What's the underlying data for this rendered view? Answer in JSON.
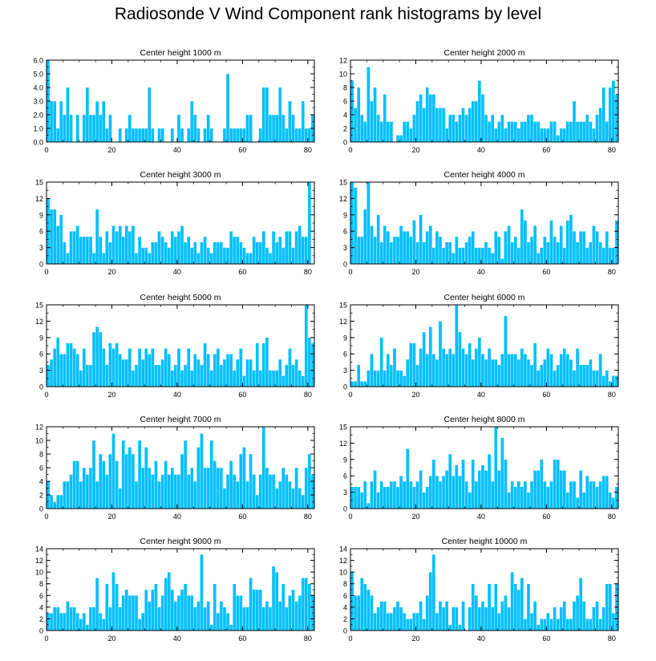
{
  "title": "Radiosonde V Wind Component rank histograms by level",
  "colors": {
    "bar": "#00BFFF",
    "bar_edge": "#ffffff",
    "axis": "#000000"
  },
  "chart_data": [
    {
      "type": "bar",
      "title": "Center height 1000 m",
      "xlim": [
        0,
        82
      ],
      "ylim": [
        0,
        6
      ],
      "xticks": [
        0,
        20,
        40,
        60,
        80
      ],
      "yticks": [
        0,
        1,
        2,
        3,
        4,
        5,
        6
      ],
      "ytick_labels": [
        "0.0",
        "1.0",
        "2.0",
        "3.0",
        "4.0",
        "5.0",
        "6.0"
      ],
      "values": [
        6,
        3,
        3,
        1,
        3,
        2,
        4,
        2,
        0,
        2,
        0,
        2,
        4,
        2,
        2,
        3,
        2,
        3,
        1,
        2,
        0,
        0,
        1,
        0,
        1,
        2,
        1,
        1,
        1,
        1,
        1,
        4,
        1,
        0,
        1,
        1,
        0,
        0,
        1,
        0,
        2,
        1,
        0,
        1,
        3,
        2,
        1,
        0,
        1,
        2,
        1,
        0,
        0,
        0,
        1,
        5,
        1,
        1,
        1,
        1,
        1,
        2,
        2,
        0,
        0,
        1,
        4,
        4,
        2,
        2,
        2,
        4,
        2,
        1,
        3,
        2,
        1,
        1,
        3,
        1,
        1,
        2
      ]
    },
    {
      "type": "bar",
      "title": "Center height 2000 m",
      "xlim": [
        0,
        82
      ],
      "ylim": [
        0,
        12
      ],
      "xticks": [
        0,
        20,
        40,
        60,
        80
      ],
      "yticks": [
        0,
        2,
        4,
        6,
        8,
        10,
        12
      ],
      "ytick_labels": [
        "0",
        "2",
        "4",
        "6",
        "8",
        "10",
        "12"
      ],
      "values": [
        9,
        5,
        8,
        4,
        3,
        11,
        6,
        8,
        4,
        3,
        7,
        3,
        3,
        0,
        1,
        1,
        3,
        3,
        2,
        4,
        6,
        7,
        5,
        8,
        7,
        7,
        5,
        5,
        5,
        2,
        4,
        4,
        3,
        4,
        5,
        4,
        5,
        6,
        6,
        9,
        7,
        4,
        3,
        4,
        2,
        3,
        4,
        2,
        3,
        3,
        3,
        2,
        3,
        3,
        4,
        4,
        3,
        3,
        2,
        2,
        2,
        3,
        3,
        1,
        2,
        2,
        3,
        3,
        6,
        3,
        3,
        3,
        4,
        3,
        2,
        4,
        5,
        8,
        3,
        8,
        9,
        7
      ]
    },
    {
      "type": "bar",
      "title": "Center height 3000 m",
      "xlim": [
        0,
        82
      ],
      "ylim": [
        0,
        15
      ],
      "xticks": [
        0,
        20,
        40,
        60,
        80
      ],
      "yticks": [
        0,
        3,
        6,
        9,
        12,
        15
      ],
      "ytick_labels": [
        "0",
        "3",
        "6",
        "9",
        "12",
        "15"
      ],
      "values": [
        12,
        10,
        10,
        7,
        9,
        4,
        2,
        6,
        6,
        7,
        5,
        5,
        5,
        5,
        2,
        10,
        5,
        2,
        6,
        4,
        7,
        6,
        7,
        5,
        7,
        6,
        7,
        2,
        5,
        3,
        3,
        2,
        4,
        4,
        6,
        5,
        4,
        3,
        6,
        5,
        6,
        7,
        4,
        5,
        3,
        4,
        2,
        4,
        5,
        3,
        2,
        4,
        4,
        4,
        3,
        3,
        6,
        5,
        5,
        4,
        3,
        2,
        2,
        5,
        4,
        4,
        6,
        3,
        2,
        6,
        4,
        5,
        3,
        6,
        6,
        3,
        6,
        7,
        5,
        5,
        15
      ]
    },
    {
      "type": "bar",
      "title": "Center height 4000 m",
      "xlim": [
        0,
        82
      ],
      "ylim": [
        0,
        15
      ],
      "xticks": [
        0,
        20,
        40,
        60,
        80
      ],
      "yticks": [
        0,
        3,
        6,
        9,
        12,
        15
      ],
      "ytick_labels": [
        "0",
        "3",
        "6",
        "9",
        "12",
        "15"
      ],
      "values": [
        15,
        14,
        5,
        5,
        10,
        15,
        7,
        5,
        9,
        4,
        7,
        6,
        4,
        5,
        5,
        7,
        6,
        6,
        5,
        8,
        4,
        9,
        4,
        6,
        7,
        3,
        6,
        5,
        3,
        4,
        4,
        2,
        5,
        3,
        3,
        4,
        5,
        6,
        3,
        3,
        3,
        4,
        3,
        2,
        6,
        5,
        1,
        6,
        7,
        4,
        5,
        3,
        10,
        8,
        4,
        5,
        7,
        2,
        3,
        5,
        4,
        8,
        5,
        4,
        7,
        3,
        8,
        9,
        6,
        4,
        6,
        6,
        3,
        4,
        7,
        6,
        4,
        3,
        6,
        3,
        3,
        8
      ]
    },
    {
      "type": "bar",
      "title": "Center height 5000 m",
      "xlim": [
        0,
        82
      ],
      "ylim": [
        0,
        15
      ],
      "xticks": [
        0,
        20,
        40,
        60,
        80
      ],
      "yticks": [
        0,
        3,
        6,
        9,
        12,
        15
      ],
      "ytick_labels": [
        "0",
        "3",
        "6",
        "9",
        "12",
        "15"
      ],
      "values": [
        4,
        5,
        7,
        9,
        6,
        6,
        8,
        8,
        7,
        6,
        3,
        7,
        4,
        4,
        10,
        11,
        10,
        7,
        4,
        8,
        7,
        8,
        6,
        5,
        5,
        7,
        3,
        4,
        7,
        5,
        7,
        6,
        7,
        4,
        4,
        5,
        7,
        6,
        3,
        4,
        7,
        3,
        4,
        7,
        3,
        6,
        5,
        4,
        8,
        6,
        3,
        6,
        7,
        4,
        5,
        6,
        6,
        3,
        5,
        7,
        2,
        5,
        5,
        3,
        8,
        3,
        8,
        9,
        3,
        3,
        3,
        5,
        2,
        4,
        7,
        4,
        5,
        3,
        2,
        15,
        9,
        8
      ]
    },
    {
      "type": "bar",
      "title": "Center height 6000 m",
      "xlim": [
        0,
        82
      ],
      "ylim": [
        0,
        15
      ],
      "xticks": [
        0,
        20,
        40,
        60,
        80
      ],
      "yticks": [
        0,
        3,
        6,
        9,
        12,
        15
      ],
      "ytick_labels": [
        "0",
        "3",
        "6",
        "9",
        "12",
        "15"
      ],
      "values": [
        1,
        1,
        4,
        1,
        1,
        3,
        6,
        3,
        3,
        9,
        3,
        6,
        4,
        7,
        3,
        3,
        2,
        5,
        8,
        8,
        4,
        7,
        10,
        6,
        11,
        6,
        5,
        12,
        7,
        6,
        7,
        6,
        15,
        10,
        7,
        6,
        8,
        5,
        7,
        9,
        6,
        5,
        7,
        5,
        5,
        4,
        6,
        13,
        6,
        6,
        6,
        5,
        7,
        6,
        5,
        4,
        8,
        3,
        4,
        5,
        7,
        6,
        3,
        4,
        6,
        7,
        6,
        5,
        3,
        7,
        4,
        4,
        4,
        5,
        3,
        3,
        6,
        2,
        3,
        1,
        2,
        2
      ]
    },
    {
      "type": "bar",
      "title": "Center height 7000 m",
      "xlim": [
        0,
        82
      ],
      "ylim": [
        0,
        12
      ],
      "xticks": [
        0,
        20,
        40,
        60,
        80
      ],
      "yticks": [
        0,
        2,
        4,
        6,
        8,
        10,
        12
      ],
      "ytick_labels": [
        "0",
        "2",
        "4",
        "6",
        "8",
        "10",
        "12"
      ],
      "values": [
        4,
        2,
        1,
        2,
        2,
        4,
        4,
        5,
        7,
        7,
        4,
        6,
        5,
        6,
        10,
        4,
        8,
        7,
        5,
        8,
        11,
        7,
        3,
        10,
        8,
        9,
        8,
        4,
        10,
        6,
        9,
        6,
        5,
        7,
        4,
        5,
        7,
        5,
        6,
        5,
        5,
        8,
        10,
        5,
        6,
        4,
        9,
        11,
        6,
        6,
        10,
        7,
        6,
        6,
        3,
        5,
        7,
        5,
        4,
        8,
        9,
        4,
        8,
        5,
        2,
        5,
        12,
        6,
        5,
        5,
        3,
        4,
        6,
        5,
        4,
        3,
        6,
        3,
        2,
        6,
        8,
        5
      ]
    },
    {
      "type": "bar",
      "title": "Center height 8000 m",
      "xlim": [
        0,
        82
      ],
      "ylim": [
        0,
        15
      ],
      "xticks": [
        0,
        20,
        40,
        60,
        80
      ],
      "yticks": [
        0,
        3,
        6,
        9,
        12,
        15
      ],
      "ytick_labels": [
        "0",
        "3",
        "6",
        "9",
        "12",
        "15"
      ],
      "values": [
        4,
        4,
        4,
        3,
        5,
        1,
        5,
        7,
        3,
        5,
        4,
        4,
        5,
        5,
        4,
        6,
        5,
        11,
        5,
        4,
        5,
        7,
        3,
        4,
        6,
        9,
        6,
        5,
        6,
        7,
        10,
        6,
        8,
        6,
        9,
        5,
        3,
        9,
        5,
        7,
        8,
        7,
        10,
        5,
        15,
        7,
        13,
        9,
        3,
        5,
        4,
        5,
        4,
        5,
        3,
        5,
        7,
        7,
        9,
        5,
        4,
        5,
        9,
        9,
        7,
        7,
        3,
        5,
        5,
        2,
        7,
        3,
        6,
        5,
        5,
        4,
        5,
        6,
        6,
        3,
        2,
        4
      ]
    },
    {
      "type": "bar",
      "title": "Center height 9000 m",
      "xlim": [
        0,
        82
      ],
      "ylim": [
        0,
        14
      ],
      "xticks": [
        0,
        20,
        40,
        60,
        80
      ],
      "yticks": [
        0,
        2,
        4,
        6,
        8,
        10,
        12,
        14
      ],
      "ytick_labels": [
        "0",
        "2",
        "4",
        "6",
        "8",
        "10",
        "12",
        "14"
      ],
      "values": [
        3,
        3,
        4,
        4,
        3,
        3,
        5,
        4,
        4,
        3,
        2,
        3,
        1,
        4,
        4,
        9,
        3,
        2,
        8,
        4,
        10,
        8,
        4,
        6,
        7,
        6,
        6,
        6,
        2,
        3,
        7,
        5,
        7,
        8,
        4,
        6,
        9,
        10,
        7,
        5,
        6,
        7,
        8,
        6,
        6,
        4,
        5,
        13,
        4,
        5,
        1,
        8,
        3,
        5,
        4,
        3,
        1,
        8,
        6,
        6,
        4,
        4,
        9,
        7,
        7,
        7,
        4,
        5,
        4,
        11,
        10,
        5,
        8,
        4,
        6,
        7,
        5,
        6,
        9,
        9,
        8,
        6
      ]
    },
    {
      "type": "bar",
      "title": "Center height 10000 m",
      "xlim": [
        0,
        82
      ],
      "ylim": [
        0,
        14
      ],
      "xticks": [
        0,
        20,
        40,
        60,
        80
      ],
      "yticks": [
        0,
        2,
        4,
        6,
        8,
        10,
        12,
        14
      ],
      "ytick_labels": [
        "0",
        "2",
        "4",
        "6",
        "8",
        "10",
        "12",
        "14"
      ],
      "values": [
        10,
        6,
        6,
        9,
        8,
        7,
        6,
        3,
        4,
        5,
        5,
        3,
        3,
        4,
        5,
        4,
        3,
        2,
        2,
        3,
        3,
        5,
        2,
        6,
        10,
        13,
        3,
        5,
        4,
        5,
        1,
        4,
        4,
        1,
        5,
        0,
        4,
        8,
        6,
        4,
        5,
        4,
        8,
        4,
        8,
        3,
        5,
        6,
        4,
        10,
        8,
        7,
        9,
        2,
        8,
        3,
        5,
        1,
        2,
        2,
        3,
        2,
        4,
        2,
        4,
        5,
        2,
        2,
        5,
        6,
        9,
        5,
        2,
        2,
        4,
        5,
        2,
        4,
        8,
        8,
        3,
        8
      ]
    }
  ]
}
